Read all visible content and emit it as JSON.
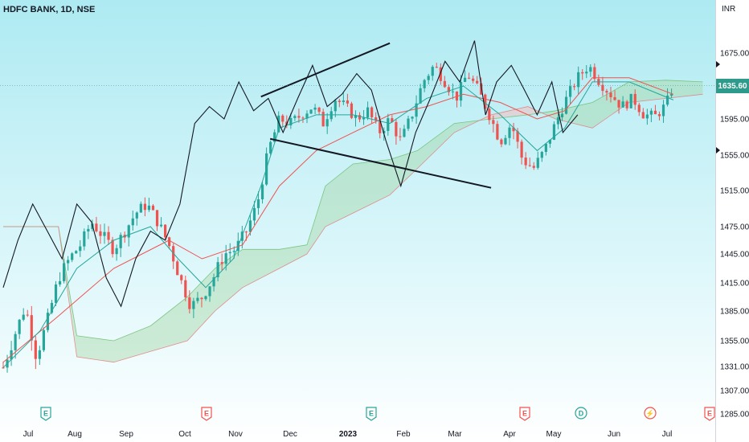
{
  "header": {
    "symbol": "HDFC BANK",
    "timeframe": "1D",
    "exchange": "NSE",
    "title": "HDFC BANK, 1D, NSE"
  },
  "price_axis": {
    "currency": "INR",
    "last_price_label": "1635.60"
  },
  "colors": {
    "up": "#26a69a",
    "down": "#ef5350",
    "kijun": "#ef5350",
    "tenkan": "#26a69a",
    "chikou": "#131722",
    "cloud_bull": "#a5d6a7",
    "cloud_bear": "#f5c0c0",
    "price_tag": "#2d9b8b"
  },
  "events": [
    {
      "letter": "E",
      "kind": "earnings",
      "color": "#26a69a"
    },
    {
      "letter": "E",
      "kind": "earnings",
      "color": "#ef5350"
    },
    {
      "letter": "E",
      "kind": "earnings",
      "color": "#26a69a"
    },
    {
      "letter": "E",
      "kind": "earnings",
      "color": "#ef5350"
    },
    {
      "letter": "D",
      "kind": "dividend",
      "color": "#26a69a"
    },
    {
      "letter": "⚡",
      "kind": "split",
      "color": "#ef5350"
    },
    {
      "letter": "E",
      "kind": "earnings",
      "color": "#ef5350"
    }
  ],
  "chart_data": {
    "type": "candlestick",
    "title": "HDFC BANK, 1D, NSE",
    "indicators": [
      "Ichimoku Cloud",
      "Triangle pattern drawing"
    ],
    "ylim": [
      1285,
      1710
    ],
    "y_ticks": [
      1675.0,
      1635.0,
      1595.0,
      1555.0,
      1515.0,
      1475.0,
      1445.0,
      1415.0,
      1385.0,
      1355.0,
      1331.0,
      1307.0,
      1285.0
    ],
    "y_tick_labels": [
      "1675.00",
      "1635.00",
      "1595.00",
      "1555.00",
      "1515.00",
      "1475.00",
      "1445.00",
      "1415.00",
      "1385.00",
      "1355.00",
      "1331.00",
      "1307.00",
      "1285.00"
    ],
    "x_labels": [
      "Jul",
      "Aug",
      "Sep",
      "Oct",
      "Nov",
      "Dec",
      "2023",
      "Feb",
      "Mar",
      "Apr",
      "May",
      "Jun",
      "Jul"
    ],
    "last_price": 1635.6,
    "close_path": [
      {
        "t": 0,
        "v": 1330
      },
      {
        "t": 6,
        "v": 1360
      },
      {
        "t": 12,
        "v": 1390
      },
      {
        "t": 18,
        "v": 1340
      },
      {
        "t": 24,
        "v": 1375
      },
      {
        "t": 30,
        "v": 1420
      },
      {
        "t": 36,
        "v": 1440
      },
      {
        "t": 42,
        "v": 1455
      },
      {
        "t": 48,
        "v": 1480
      },
      {
        "t": 54,
        "v": 1465
      },
      {
        "t": 60,
        "v": 1450
      },
      {
        "t": 66,
        "v": 1470
      },
      {
        "t": 72,
        "v": 1490
      },
      {
        "t": 78,
        "v": 1500
      },
      {
        "t": 84,
        "v": 1480
      },
      {
        "t": 90,
        "v": 1455
      },
      {
        "t": 96,
        "v": 1420
      },
      {
        "t": 102,
        "v": 1390
      },
      {
        "t": 108,
        "v": 1400
      },
      {
        "t": 114,
        "v": 1420
      },
      {
        "t": 120,
        "v": 1445
      },
      {
        "t": 126,
        "v": 1450
      },
      {
        "t": 132,
        "v": 1470
      },
      {
        "t": 138,
        "v": 1500
      },
      {
        "t": 144,
        "v": 1560
      },
      {
        "t": 150,
        "v": 1595
      },
      {
        "t": 156,
        "v": 1590
      },
      {
        "t": 162,
        "v": 1600
      },
      {
        "t": 168,
        "v": 1610
      },
      {
        "t": 174,
        "v": 1590
      },
      {
        "t": 180,
        "v": 1620
      },
      {
        "t": 186,
        "v": 1610
      },
      {
        "t": 192,
        "v": 1595
      },
      {
        "t": 198,
        "v": 1605
      },
      {
        "t": 204,
        "v": 1580
      },
      {
        "t": 210,
        "v": 1595
      },
      {
        "t": 216,
        "v": 1570
      },
      {
        "t": 222,
        "v": 1600
      },
      {
        "t": 228,
        "v": 1640
      },
      {
        "t": 234,
        "v": 1660
      },
      {
        "t": 240,
        "v": 1640
      },
      {
        "t": 246,
        "v": 1620
      },
      {
        "t": 252,
        "v": 1650
      },
      {
        "t": 258,
        "v": 1630
      },
      {
        "t": 264,
        "v": 1600
      },
      {
        "t": 270,
        "v": 1570
      },
      {
        "t": 276,
        "v": 1590
      },
      {
        "t": 282,
        "v": 1550
      },
      {
        "t": 288,
        "v": 1540
      },
      {
        "t": 294,
        "v": 1560
      },
      {
        "t": 300,
        "v": 1590
      },
      {
        "t": 306,
        "v": 1620
      },
      {
        "t": 312,
        "v": 1645
      },
      {
        "t": 318,
        "v": 1660
      },
      {
        "t": 324,
        "v": 1640
      },
      {
        "t": 330,
        "v": 1625
      },
      {
        "t": 336,
        "v": 1610
      },
      {
        "t": 342,
        "v": 1620
      },
      {
        "t": 348,
        "v": 1600
      },
      {
        "t": 354,
        "v": 1598
      },
      {
        "t": 360,
        "v": 1612
      },
      {
        "t": 364,
        "v": 1635.6
      }
    ],
    "kijun_path": [
      {
        "t": 0,
        "v": 1335
      },
      {
        "t": 30,
        "v": 1380
      },
      {
        "t": 60,
        "v": 1430
      },
      {
        "t": 90,
        "v": 1460
      },
      {
        "t": 108,
        "v": 1440
      },
      {
        "t": 130,
        "v": 1455
      },
      {
        "t": 150,
        "v": 1520
      },
      {
        "t": 170,
        "v": 1560
      },
      {
        "t": 190,
        "v": 1580
      },
      {
        "t": 210,
        "v": 1600
      },
      {
        "t": 230,
        "v": 1610
      },
      {
        "t": 250,
        "v": 1625
      },
      {
        "t": 270,
        "v": 1615
      },
      {
        "t": 290,
        "v": 1595
      },
      {
        "t": 305,
        "v": 1605
      },
      {
        "t": 320,
        "v": 1645
      },
      {
        "t": 340,
        "v": 1645
      },
      {
        "t": 364,
        "v": 1625
      }
    ],
    "tenkan_path": [
      {
        "t": 0,
        "v": 1330
      },
      {
        "t": 20,
        "v": 1365
      },
      {
        "t": 40,
        "v": 1430
      },
      {
        "t": 60,
        "v": 1460
      },
      {
        "t": 80,
        "v": 1475
      },
      {
        "t": 95,
        "v": 1440
      },
      {
        "t": 110,
        "v": 1410
      },
      {
        "t": 125,
        "v": 1440
      },
      {
        "t": 140,
        "v": 1520
      },
      {
        "t": 150,
        "v": 1585
      },
      {
        "t": 170,
        "v": 1600
      },
      {
        "t": 190,
        "v": 1600
      },
      {
        "t": 210,
        "v": 1590
      },
      {
        "t": 230,
        "v": 1620
      },
      {
        "t": 250,
        "v": 1635
      },
      {
        "t": 270,
        "v": 1600
      },
      {
        "t": 290,
        "v": 1560
      },
      {
        "t": 305,
        "v": 1585
      },
      {
        "t": 320,
        "v": 1640
      },
      {
        "t": 340,
        "v": 1640
      },
      {
        "t": 364,
        "v": 1618
      }
    ],
    "chikou_path": [
      {
        "t": 0,
        "v": 1410
      },
      {
        "t": 8,
        "v": 1460
      },
      {
        "t": 16,
        "v": 1500
      },
      {
        "t": 24,
        "v": 1470
      },
      {
        "t": 32,
        "v": 1440
      },
      {
        "t": 40,
        "v": 1500
      },
      {
        "t": 48,
        "v": 1480
      },
      {
        "t": 56,
        "v": 1420
      },
      {
        "t": 64,
        "v": 1390
      },
      {
        "t": 72,
        "v": 1440
      },
      {
        "t": 80,
        "v": 1470
      },
      {
        "t": 88,
        "v": 1460
      },
      {
        "t": 96,
        "v": 1500
      },
      {
        "t": 104,
        "v": 1590
      },
      {
        "t": 112,
        "v": 1610
      },
      {
        "t": 120,
        "v": 1595
      },
      {
        "t": 128,
        "v": 1640
      },
      {
        "t": 136,
        "v": 1605
      },
      {
        "t": 144,
        "v": 1620
      },
      {
        "t": 152,
        "v": 1580
      },
      {
        "t": 160,
        "v": 1620
      },
      {
        "t": 168,
        "v": 1660
      },
      {
        "t": 176,
        "v": 1610
      },
      {
        "t": 184,
        "v": 1625
      },
      {
        "t": 192,
        "v": 1650
      },
      {
        "t": 200,
        "v": 1630
      },
      {
        "t": 208,
        "v": 1570
      },
      {
        "t": 216,
        "v": 1520
      },
      {
        "t": 224,
        "v": 1580
      },
      {
        "t": 232,
        "v": 1620
      },
      {
        "t": 240,
        "v": 1665
      },
      {
        "t": 248,
        "v": 1640
      },
      {
        "t": 256,
        "v": 1690
      },
      {
        "t": 262,
        "v": 1600
      },
      {
        "t": 268,
        "v": 1640
      },
      {
        "t": 276,
        "v": 1660
      },
      {
        "t": 282,
        "v": 1635
      },
      {
        "t": 290,
        "v": 1600
      },
      {
        "t": 298,
        "v": 1640
      },
      {
        "t": 304,
        "v": 1580
      },
      {
        "t": 312,
        "v": 1600
      }
    ],
    "cloud_span_a": [
      {
        "t": 0,
        "v": 1475
      },
      {
        "t": 30,
        "v": 1475
      },
      {
        "t": 40,
        "v": 1360
      },
      {
        "t": 60,
        "v": 1355
      },
      {
        "t": 80,
        "v": 1370
      },
      {
        "t": 100,
        "v": 1400
      },
      {
        "t": 115,
        "v": 1430
      },
      {
        "t": 130,
        "v": 1450
      },
      {
        "t": 150,
        "v": 1450
      },
      {
        "t": 165,
        "v": 1455
      },
      {
        "t": 175,
        "v": 1520
      },
      {
        "t": 190,
        "v": 1545
      },
      {
        "t": 210,
        "v": 1550
      },
      {
        "t": 225,
        "v": 1560
      },
      {
        "t": 245,
        "v": 1590
      },
      {
        "t": 265,
        "v": 1595
      },
      {
        "t": 285,
        "v": 1600
      },
      {
        "t": 300,
        "v": 1605
      },
      {
        "t": 320,
        "v": 1615
      },
      {
        "t": 340,
        "v": 1640
      },
      {
        "t": 360,
        "v": 1642
      },
      {
        "t": 380,
        "v": 1640
      }
    ],
    "cloud_span_b": [
      {
        "t": 0,
        "v": 1475
      },
      {
        "t": 30,
        "v": 1475
      },
      {
        "t": 40,
        "v": 1340
      },
      {
        "t": 60,
        "v": 1335
      },
      {
        "t": 80,
        "v": 1345
      },
      {
        "t": 100,
        "v": 1355
      },
      {
        "t": 115,
        "v": 1385
      },
      {
        "t": 130,
        "v": 1410
      },
      {
        "t": 150,
        "v": 1430
      },
      {
        "t": 165,
        "v": 1445
      },
      {
        "t": 175,
        "v": 1475
      },
      {
        "t": 190,
        "v": 1490
      },
      {
        "t": 210,
        "v": 1510
      },
      {
        "t": 225,
        "v": 1540
      },
      {
        "t": 245,
        "v": 1580
      },
      {
        "t": 265,
        "v": 1600
      },
      {
        "t": 285,
        "v": 1610
      },
      {
        "t": 300,
        "v": 1595
      },
      {
        "t": 320,
        "v": 1585
      },
      {
        "t": 340,
        "v": 1615
      },
      {
        "t": 360,
        "v": 1620
      },
      {
        "t": 380,
        "v": 1625
      }
    ],
    "triangle": {
      "upper": [
        {
          "t": 140,
          "v": 1622
        },
        {
          "t": 210,
          "v": 1687
        }
      ],
      "lower": [
        {
          "t": 145,
          "v": 1573
        },
        {
          "t": 265,
          "v": 1518
        }
      ]
    }
  }
}
